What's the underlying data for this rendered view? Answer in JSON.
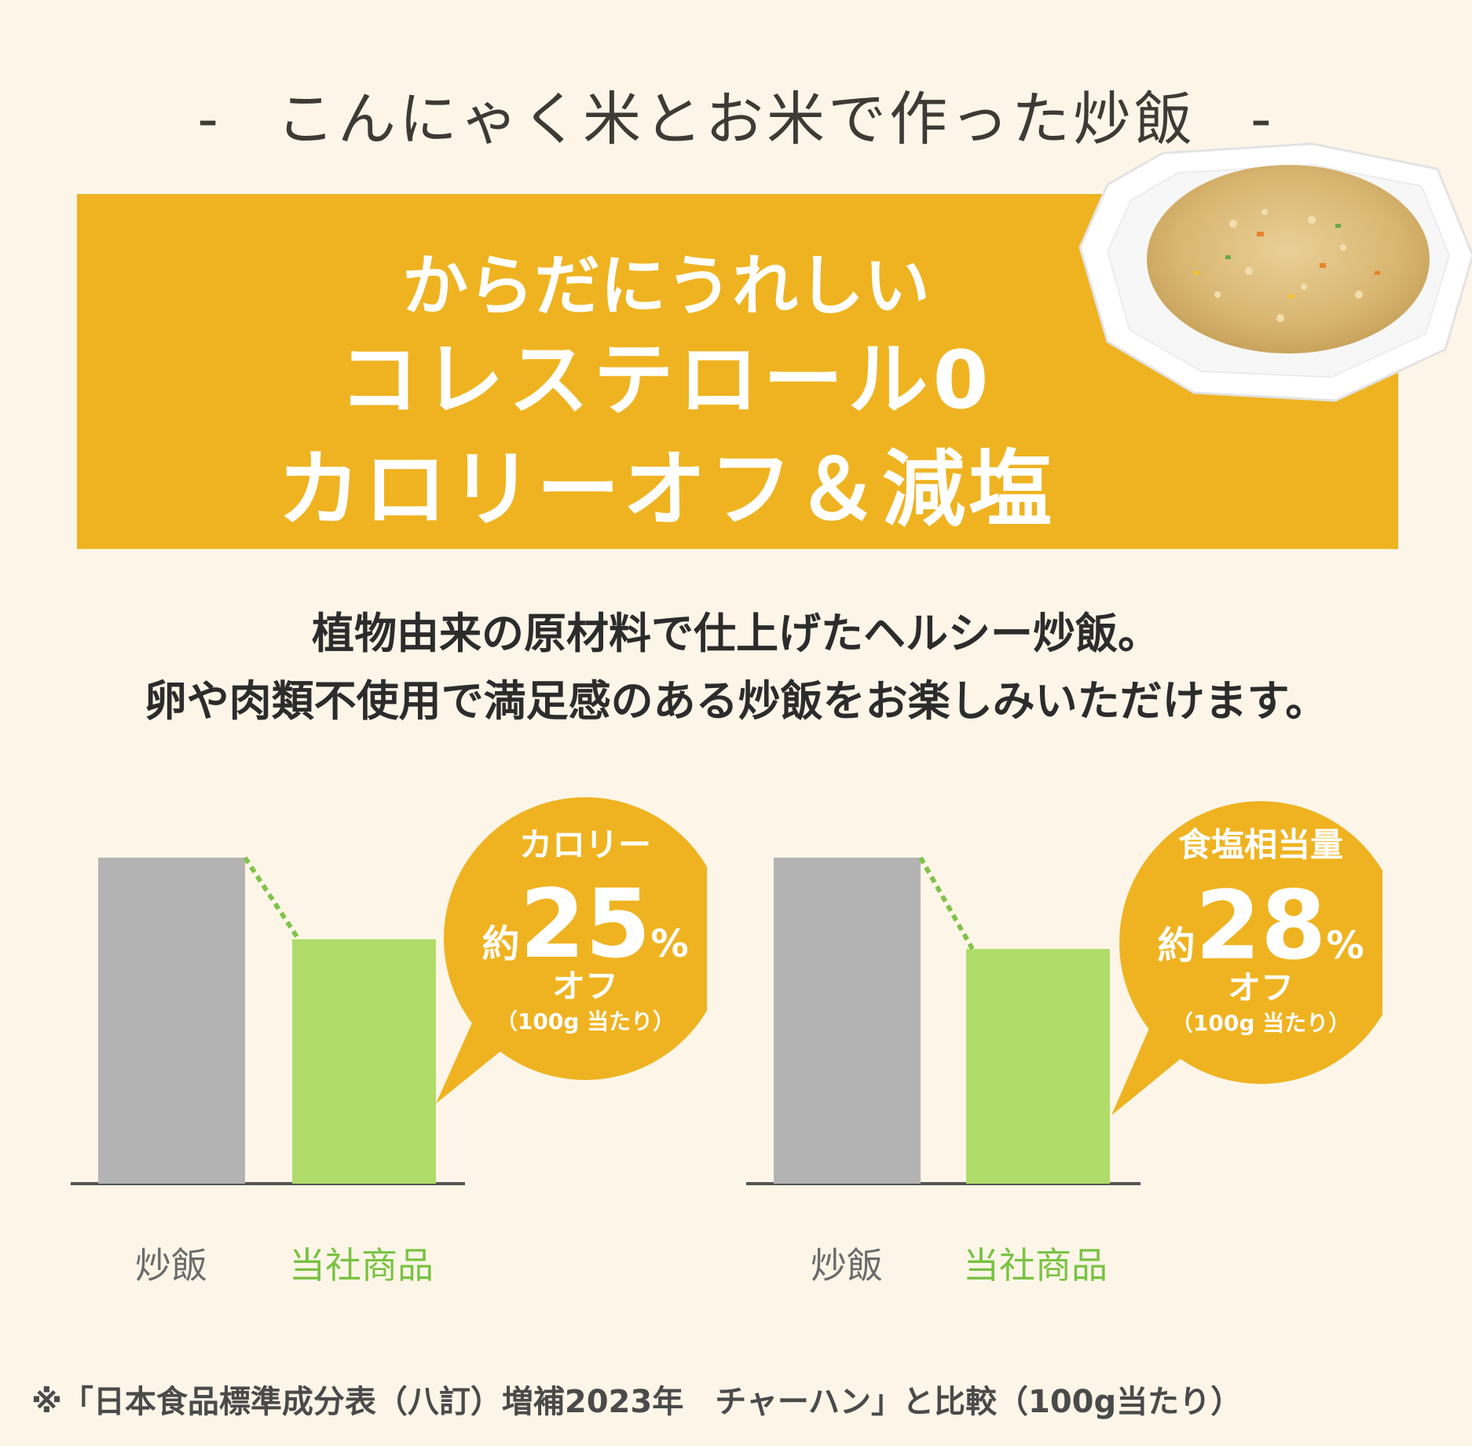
{
  "header": {
    "dash_left": "-",
    "title": "こんにゃく米とお米で作った炒飯",
    "dash_right": "-"
  },
  "banner": {
    "line1": "からだにうれしい",
    "line2": "コレステロール0",
    "line3": "カロリーオフ＆減塩",
    "color": "#efb321"
  },
  "description": {
    "line1": "植物由来の原材料で仕上げたヘルシー炒飯。",
    "line2": "卵や肉類不使用で満足感のある炒飯をお楽しみいただけます。"
  },
  "chart_data": [
    {
      "type": "bar",
      "categories": [
        "炒飯",
        "当社商品"
      ],
      "values": [
        100,
        75
      ],
      "colors": [
        "#b3b3b3",
        "#b0dc6a"
      ],
      "label_colors": [
        "#6b6b6b",
        "#7ac243"
      ],
      "callout": {
        "title": "カロリー",
        "prefix": "約",
        "value": "25",
        "unit": "%",
        "suffix": "オフ",
        "note": "（100g 当たり）",
        "color": "#efb321"
      }
    },
    {
      "type": "bar",
      "categories": [
        "炒飯",
        "当社商品"
      ],
      "values": [
        100,
        72
      ],
      "colors": [
        "#b3b3b3",
        "#b0dc6a"
      ],
      "label_colors": [
        "#6b6b6b",
        "#7ac243"
      ],
      "callout": {
        "title": "食塩相当量",
        "prefix": "約",
        "value": "28",
        "unit": "%",
        "suffix": "オフ",
        "note": "（100g 当たり）",
        "color": "#efb321"
      }
    }
  ],
  "footnote": "※「日本食品標準成分表（八訂）増補2023年　チャーハン」と比較（100g当たり）"
}
